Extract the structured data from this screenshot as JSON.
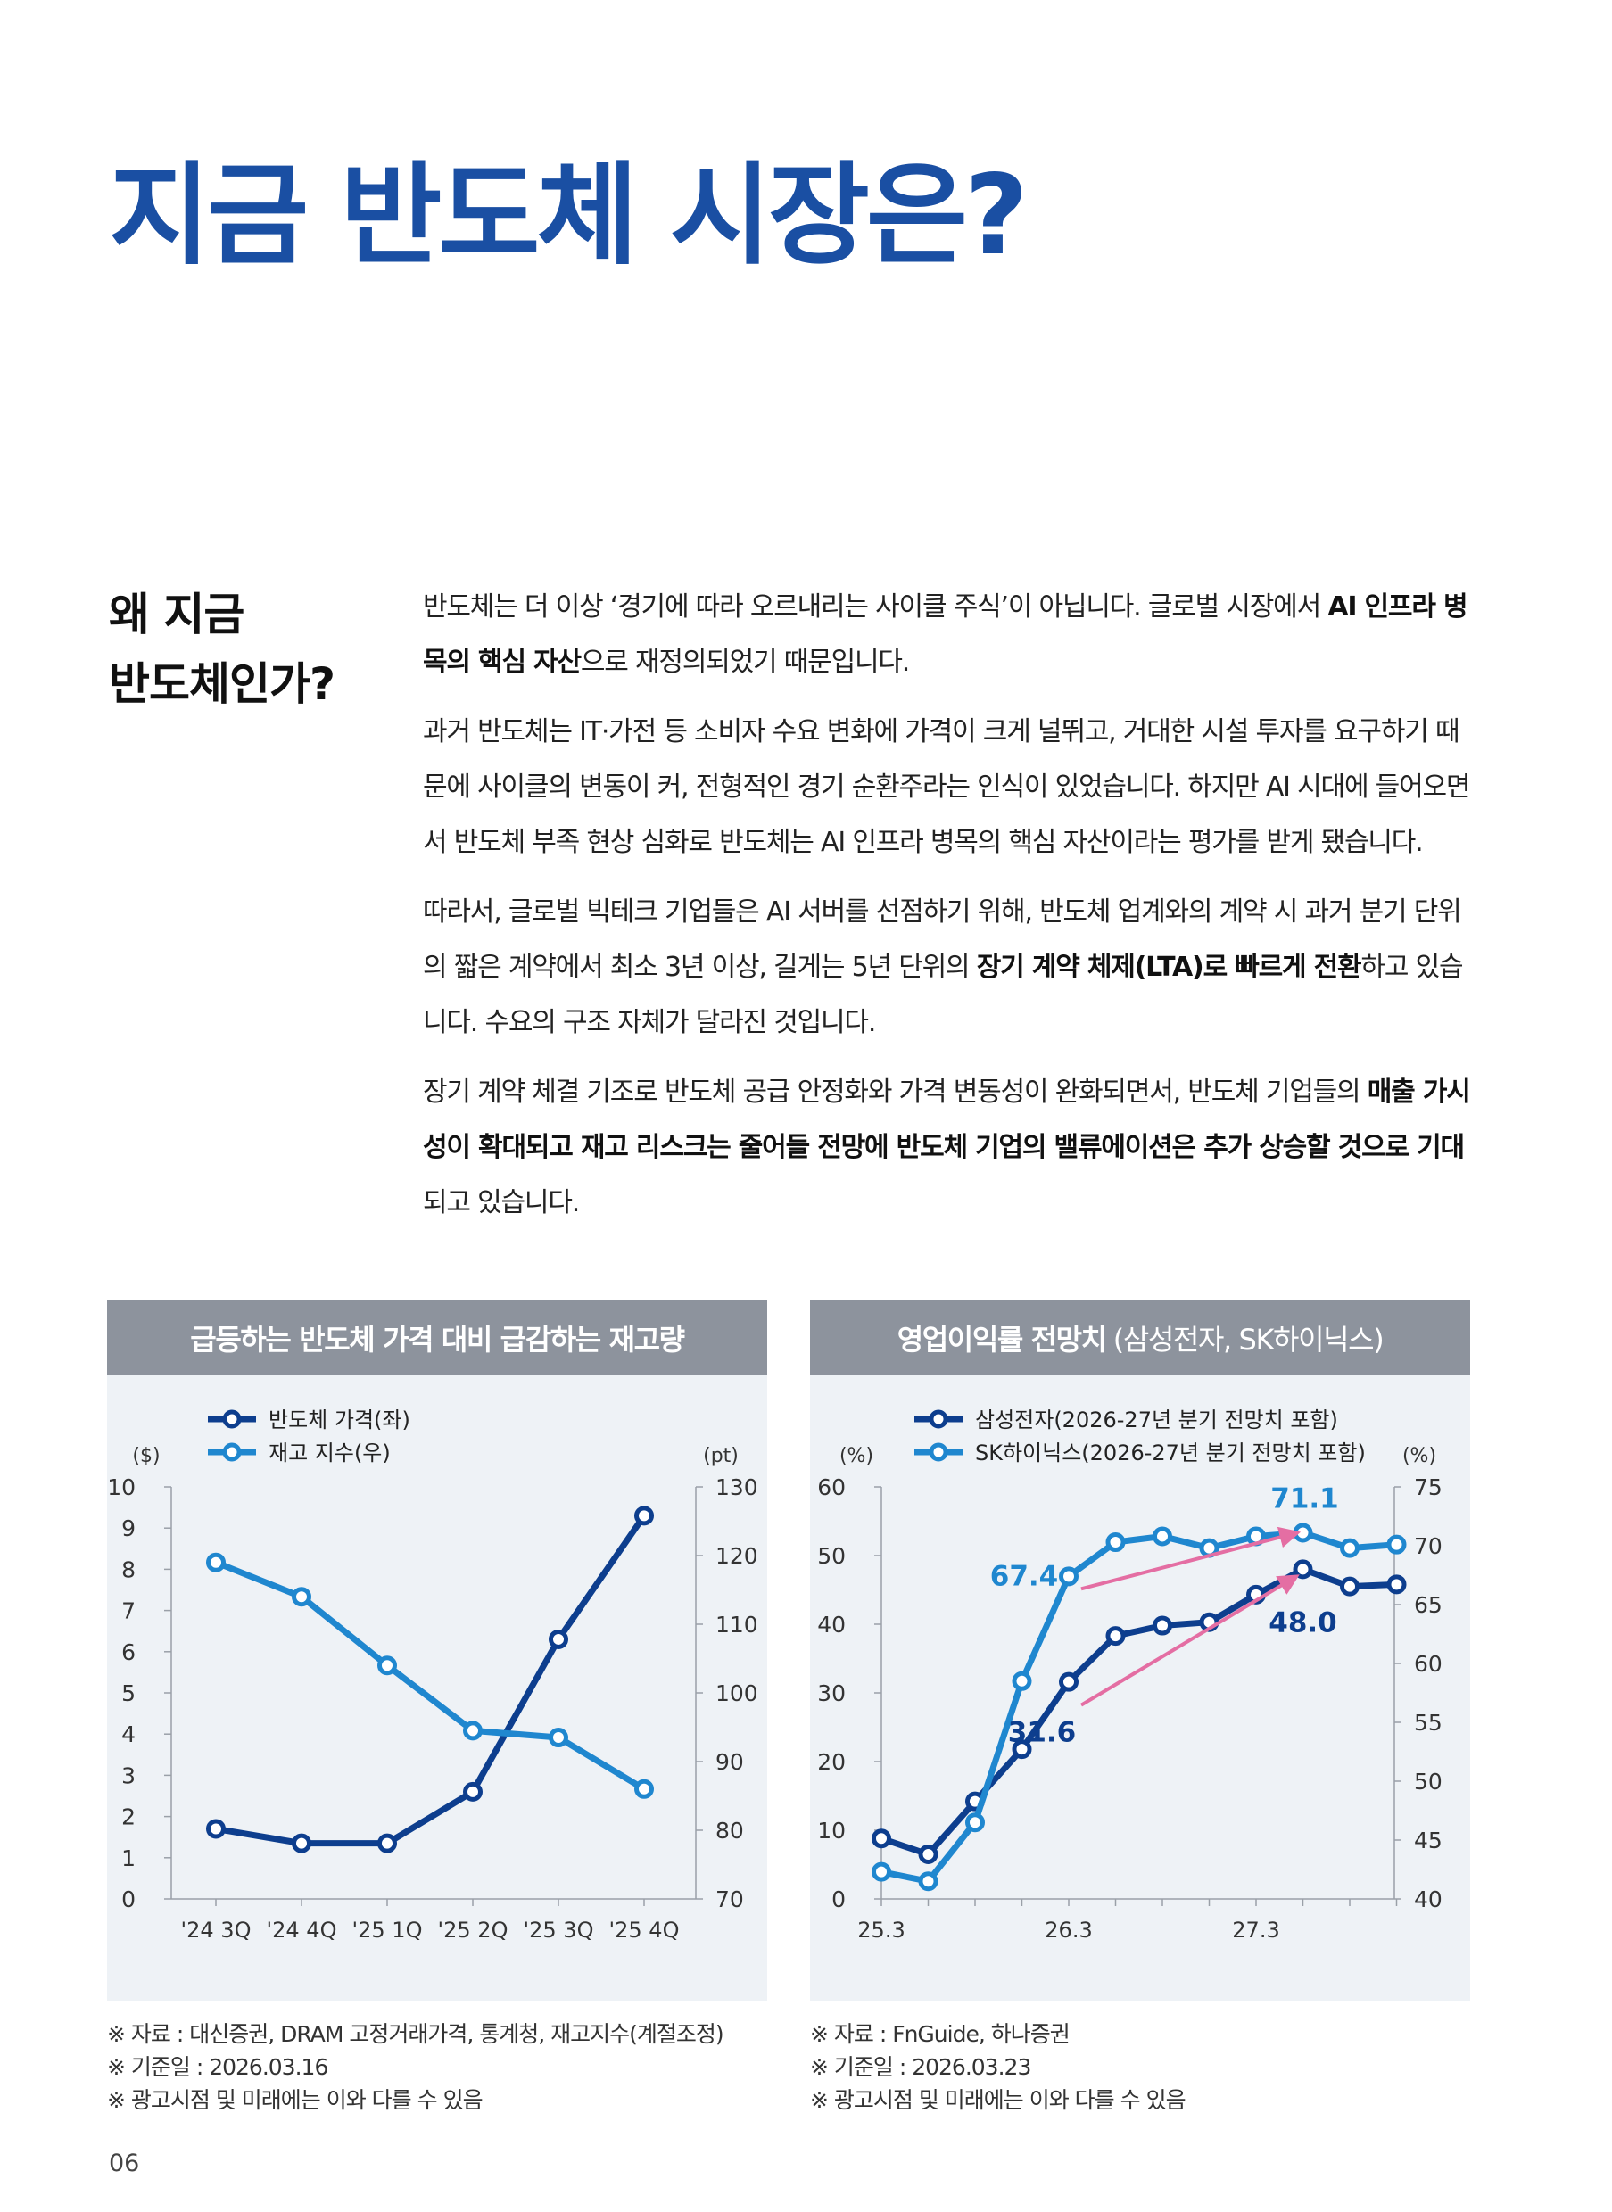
{
  "title": "지금 반도체 시장은?",
  "section_heading": [
    "왜 지금",
    "반도체인가?"
  ],
  "paragraphs": [
    [
      {
        "t": "반도체는 더 이상 ‘경기에 따라 오르내리는 사이클 주식’이 아닙니다. 글로벌 시장에서 "
      },
      {
        "t": "AI 인프라 병목의 핵심 자산",
        "b": true
      },
      {
        "t": "으로 재정의되었기 때문입니다."
      }
    ],
    [
      {
        "t": "과거 반도체는 IT·가전 등 소비자 수요 변화에 가격이 크게 널뛰고, 거대한 시설 투자를 요구하기 때문에 사이클의 변동이 커, 전형적인 경기 순환주라는 인식이 있었습니다. 하지만 AI 시대에 들어오면서 반도체 부족 현상 심화로 반도체는 AI 인프라 병목의 핵심 자산이라는 평가를 받게 됐습니다."
      }
    ],
    [
      {
        "t": "따라서, 글로벌 빅테크 기업들은 AI 서버를 선점하기 위해, 반도체 업계와의 계약 시 과거 분기 단위의 짧은 계약에서 최소 3년 이상, 길게는 5년 단위의 "
      },
      {
        "t": "장기 계약 체제(LTA)로 빠르게 전환",
        "b": true
      },
      {
        "t": "하고 있습니다. 수요의 구조 자체가 달라진 것입니다."
      }
    ],
    [
      {
        "t": "장기 계약 체결 기조로 반도체 공급 안정화와 가격 변동성이 완화되면서, 반도체 기업들의 "
      },
      {
        "t": "매출 가시성이 확대되고 재고 리스크는 줄어들 전망에 반도체 기업의 밸류에이션은 추가 상승할 것으로 기대",
        "b": true
      },
      {
        "t": "되고 있습니다."
      }
    ]
  ],
  "chart_data": [
    {
      "type": "line",
      "title": "급등하는 반도체 가격 대비 급감하는 재고량",
      "categories": [
        "'24 3Q",
        "'24 4Q",
        "'25 1Q",
        "'25 2Q",
        "'25 3Q",
        "'25 4Q"
      ],
      "y_left": {
        "unit": "($)",
        "min": 0,
        "max": 10,
        "ticks": [
          0,
          1,
          2,
          3,
          4,
          5,
          6,
          7,
          8,
          9,
          10
        ]
      },
      "y_right": {
        "unit": "(pt)",
        "min": 70,
        "max": 130,
        "ticks": [
          70,
          80,
          90,
          100,
          110,
          120,
          130
        ]
      },
      "series": [
        {
          "name": "반도체 가격(좌)",
          "axis": "left",
          "color": "#0d3e8e",
          "values": [
            1.7,
            1.35,
            1.35,
            2.6,
            6.3,
            9.3
          ]
        },
        {
          "name": "재고 지수(우)",
          "axis": "right",
          "color": "#1f87cf",
          "values": [
            119,
            114,
            104,
            94.5,
            93.5,
            86
          ]
        }
      ],
      "legend_position": "top-left",
      "grid": false
    },
    {
      "type": "line",
      "title": "영업이익률 전망치",
      "title_suffix": "(삼성전자, SK하이닉스)",
      "x_ticks": [
        "25.3",
        "26.3",
        "27.3"
      ],
      "y_left": {
        "unit": "(%)",
        "min": 0,
        "max": 60,
        "ticks": [
          0,
          10,
          20,
          30,
          40,
          50,
          60
        ]
      },
      "y_right": {
        "unit": "(%)",
        "min": 40,
        "max": 75,
        "ticks": [
          40,
          45,
          50,
          55,
          60,
          65,
          70,
          75
        ]
      },
      "series": [
        {
          "name": "삼성전자(2026-27년 분기 전망치 포함)",
          "axis": "left",
          "color": "#0d3e8e",
          "values": [
            8.8,
            6.5,
            14.2,
            21.8,
            31.6,
            38.3,
            39.8,
            40.3,
            44.3,
            48.0,
            45.5,
            45.8
          ]
        },
        {
          "name": "SK하이닉스(2026-27년 분기 전망치 포함)",
          "axis": "right",
          "color": "#1f87cf",
          "values": [
            42.3,
            41.5,
            46.5,
            58.5,
            67.4,
            70.3,
            70.8,
            69.8,
            70.8,
            71.1,
            69.8,
            70.1
          ]
        }
      ],
      "annotations": [
        {
          "text": "67.4",
          "series": 1,
          "index": 4
        },
        {
          "text": "71.1",
          "series": 1,
          "index": 9
        },
        {
          "text": "31.6",
          "series": 0,
          "index": 4
        },
        {
          "text": "48.0",
          "series": 0,
          "index": 9
        }
      ],
      "arrows": [
        {
          "series": 1,
          "from_index": 4,
          "to_index": 9
        },
        {
          "series": 0,
          "from_index": 4,
          "to_index": 9
        }
      ],
      "legend_position": "top-center",
      "grid": false
    }
  ],
  "notes_left": [
    "※ 자료 : 대신증권, DRAM 고정거래가격, 통계청, 재고지수(계절조정)",
    "※ 기준일 : 2026.03.16",
    "※ 광고시점 및 미래에는 이와 다를 수 있음"
  ],
  "notes_right": [
    "※ 자료 : FnGuide, 하나증권",
    "※ 기준일 : 2026.03.23",
    "※ 광고시점 및 미래에는 이와 다를 수 있음"
  ],
  "page_number": "06",
  "colors": {
    "accent": "#1a4fa3",
    "dark_series": "#0d3e8e",
    "light_series": "#1f87cf",
    "arrow": "#e46ea3",
    "panel_bg": "#eef2f6",
    "panel_header": "#8d939d"
  }
}
